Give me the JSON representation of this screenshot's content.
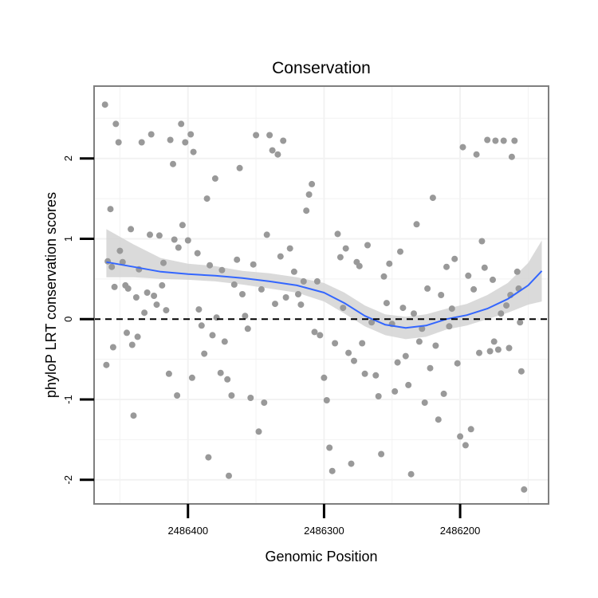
{
  "chart_data": {
    "type": "scatter",
    "title": "Conservation",
    "xlabel": "Genomic Position",
    "ylabel": "phyloP LRT conservation scores",
    "x_reversed": true,
    "xlim": [
      2486469,
      2486135
    ],
    "ylim": [
      -2.3,
      2.9
    ],
    "x_ticks": [
      2486400,
      2486300,
      2486200
    ],
    "x_tick_labels": [
      "2486400",
      "2486300",
      "2486200"
    ],
    "y_ticks": [
      -2,
      -1,
      0,
      1,
      2
    ],
    "y_tick_labels": [
      "-2",
      "-1",
      "0",
      "1",
      "2"
    ],
    "grid": true,
    "reference_line": {
      "y": 0,
      "style": "dashed",
      "color": "#000000"
    },
    "colors": {
      "points": "#999999",
      "smooth": "#3366ff",
      "band": "#d3d3d3",
      "panel_border": "#7f7f7f",
      "grid": "#f2f2f2"
    },
    "smooth": {
      "x": [
        2486460,
        2486440,
        2486420,
        2486400,
        2486380,
        2486360,
        2486340,
        2486320,
        2486300,
        2486285,
        2486270,
        2486255,
        2486240,
        2486225,
        2486210,
        2486195,
        2486180,
        2486165,
        2486150,
        2486140
      ],
      "y": [
        0.71,
        0.65,
        0.59,
        0.56,
        0.54,
        0.51,
        0.47,
        0.42,
        0.33,
        0.2,
        0.04,
        -0.07,
        -0.11,
        -0.08,
        0.0,
        0.05,
        0.13,
        0.25,
        0.42,
        0.6
      ],
      "lower": [
        0.52,
        0.52,
        0.5,
        0.49,
        0.47,
        0.43,
        0.38,
        0.33,
        0.22,
        0.07,
        -0.09,
        -0.2,
        -0.25,
        -0.22,
        -0.13,
        -0.08,
        0.0,
        0.08,
        0.18,
        0.22
      ],
      "upper": [
        1.12,
        0.93,
        0.76,
        0.69,
        0.66,
        0.6,
        0.57,
        0.52,
        0.45,
        0.33,
        0.17,
        0.06,
        0.03,
        0.06,
        0.13,
        0.19,
        0.3,
        0.45,
        0.7,
        0.98
      ]
    },
    "points": [
      [
        2486461,
        2.67
      ],
      [
        2486459,
        0.72
      ],
      [
        2486460,
        -0.57
      ],
      [
        2486457,
        1.37
      ],
      [
        2486456,
        0.65
      ],
      [
        2486455,
        -0.35
      ],
      [
        2486454,
        0.4
      ],
      [
        2486453,
        2.43
      ],
      [
        2486451,
        2.2
      ],
      [
        2486450,
        0.85
      ],
      [
        2486448,
        0.71
      ],
      [
        2486446,
        0.42
      ],
      [
        2486445,
        -0.17
      ],
      [
        2486444,
        0.38
      ],
      [
        2486442,
        1.12
      ],
      [
        2486441,
        -0.32
      ],
      [
        2486440,
        -1.2
      ],
      [
        2486438,
        0.27
      ],
      [
        2486437,
        -0.22
      ],
      [
        2486436,
        0.62
      ],
      [
        2486434,
        2.2
      ],
      [
        2486432,
        0.08
      ],
      [
        2486430,
        0.33
      ],
      [
        2486428,
        1.05
      ],
      [
        2486427,
        2.3
      ],
      [
        2486425,
        0.29
      ],
      [
        2486423,
        0.18
      ],
      [
        2486421,
        1.04
      ],
      [
        2486419,
        0.42
      ],
      [
        2486418,
        0.7
      ],
      [
        2486416,
        0.11
      ],
      [
        2486414,
        -0.68
      ],
      [
        2486413,
        2.23
      ],
      [
        2486411,
        1.93
      ],
      [
        2486410,
        0.99
      ],
      [
        2486408,
        -0.95
      ],
      [
        2486407,
        0.89
      ],
      [
        2486405,
        2.43
      ],
      [
        2486404,
        1.17
      ],
      [
        2486402,
        2.2
      ],
      [
        2486400,
        0.98
      ],
      [
        2486398,
        2.3
      ],
      [
        2486397,
        -0.73
      ],
      [
        2486396,
        2.08
      ],
      [
        2486393,
        0.82
      ],
      [
        2486392,
        0.12
      ],
      [
        2486390,
        -0.08
      ],
      [
        2486388,
        -0.43
      ],
      [
        2486386,
        1.5
      ],
      [
        2486385,
        -1.72
      ],
      [
        2486384,
        0.67
      ],
      [
        2486382,
        -0.2
      ],
      [
        2486380,
        1.75
      ],
      [
        2486379,
        0.02
      ],
      [
        2486376,
        -0.67
      ],
      [
        2486375,
        0.61
      ],
      [
        2486373,
        -0.28
      ],
      [
        2486371,
        -0.75
      ],
      [
        2486370,
        -1.95
      ],
      [
        2486368,
        -0.95
      ],
      [
        2486366,
        0.43
      ],
      [
        2486364,
        0.74
      ],
      [
        2486362,
        1.88
      ],
      [
        2486360,
        0.31
      ],
      [
        2486358,
        0.04
      ],
      [
        2486356,
        -0.12
      ],
      [
        2486354,
        -0.98
      ],
      [
        2486352,
        0.68
      ],
      [
        2486350,
        2.29
      ],
      [
        2486348,
        -1.4
      ],
      [
        2486346,
        0.37
      ],
      [
        2486344,
        -1.04
      ],
      [
        2486342,
        1.05
      ],
      [
        2486340,
        2.29
      ],
      [
        2486338,
        2.1
      ],
      [
        2486336,
        0.19
      ],
      [
        2486334,
        2.05
      ],
      [
        2486332,
        0.78
      ],
      [
        2486330,
        2.22
      ],
      [
        2486328,
        0.27
      ],
      [
        2486325,
        0.88
      ],
      [
        2486322,
        0.59
      ],
      [
        2486319,
        0.31
      ],
      [
        2486317,
        0.18
      ],
      [
        2486315,
        0.47
      ],
      [
        2486313,
        1.35
      ],
      [
        2486311,
        1.55
      ],
      [
        2486309,
        1.68
      ],
      [
        2486307,
        -0.16
      ],
      [
        2486305,
        0.47
      ],
      [
        2486303,
        -0.2
      ],
      [
        2486300,
        -0.73
      ],
      [
        2486298,
        -1.01
      ],
      [
        2486296,
        -1.6
      ],
      [
        2486294,
        -1.89
      ],
      [
        2486292,
        -0.3
      ],
      [
        2486290,
        1.06
      ],
      [
        2486288,
        0.77
      ],
      [
        2486286,
        0.14
      ],
      [
        2486284,
        0.88
      ],
      [
        2486282,
        -0.42
      ],
      [
        2486280,
        -1.8
      ],
      [
        2486278,
        -0.52
      ],
      [
        2486276,
        0.71
      ],
      [
        2486274,
        0.66
      ],
      [
        2486272,
        -0.3
      ],
      [
        2486270,
        -0.68
      ],
      [
        2486268,
        0.92
      ],
      [
        2486265,
        -0.04
      ],
      [
        2486262,
        -0.7
      ],
      [
        2486260,
        -0.96
      ],
      [
        2486258,
        -1.68
      ],
      [
        2486256,
        0.53
      ],
      [
        2486254,
        0.2
      ],
      [
        2486252,
        0.69
      ],
      [
        2486250,
        -0.06
      ],
      [
        2486248,
        -0.9
      ],
      [
        2486246,
        -0.54
      ],
      [
        2486244,
        0.84
      ],
      [
        2486242,
        0.14
      ],
      [
        2486240,
        -0.46
      ],
      [
        2486238,
        -0.82
      ],
      [
        2486236,
        -1.93
      ],
      [
        2486234,
        0.07
      ],
      [
        2486232,
        1.18
      ],
      [
        2486230,
        -0.28
      ],
      [
        2486228,
        -0.12
      ],
      [
        2486226,
        -1.04
      ],
      [
        2486224,
        0.38
      ],
      [
        2486222,
        -0.61
      ],
      [
        2486220,
        1.51
      ],
      [
        2486218,
        -0.33
      ],
      [
        2486216,
        -1.25
      ],
      [
        2486214,
        0.3
      ],
      [
        2486212,
        -0.93
      ],
      [
        2486210,
        0.65
      ],
      [
        2486208,
        -0.09
      ],
      [
        2486206,
        0.13
      ],
      [
        2486204,
        0.75
      ],
      [
        2486202,
        -0.55
      ],
      [
        2486200,
        -1.46
      ],
      [
        2486198,
        2.14
      ],
      [
        2486196,
        -1.57
      ],
      [
        2486194,
        0.54
      ],
      [
        2486192,
        -1.37
      ],
      [
        2486190,
        0.37
      ],
      [
        2486188,
        2.05
      ],
      [
        2486186,
        -0.42
      ],
      [
        2486184,
        0.97
      ],
      [
        2486182,
        0.64
      ],
      [
        2486180,
        2.23
      ],
      [
        2486178,
        -0.4
      ],
      [
        2486176,
        0.49
      ],
      [
        2486174,
        2.22
      ],
      [
        2486172,
        -0.38
      ],
      [
        2486170,
        0.07
      ],
      [
        2486168,
        2.22
      ],
      [
        2486166,
        0.17
      ],
      [
        2486164,
        -0.36
      ],
      [
        2486162,
        2.02
      ],
      [
        2486160,
        2.22
      ],
      [
        2486158,
        0.59
      ],
      [
        2486157,
        0.38
      ],
      [
        2486156,
        -0.04
      ],
      [
        2486155,
        -0.65
      ],
      [
        2486153,
        -2.12
      ],
      [
        2486163,
        0.3
      ],
      [
        2486175,
        -0.28
      ]
    ]
  }
}
